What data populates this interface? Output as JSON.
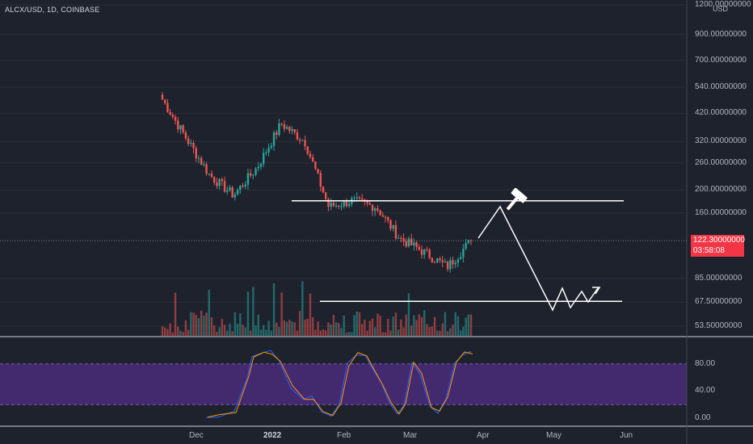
{
  "header": {
    "symbol": "ALCX/USD, 1D, COINBASE",
    "currency": "USD"
  },
  "price_scale": [
    {
      "label": "1200.00000000",
      "value": 1200
    },
    {
      "label": "900.00000000",
      "value": 900
    },
    {
      "label": "700.00000000",
      "value": 700
    },
    {
      "label": "540.00000000",
      "value": 540
    },
    {
      "label": "420.00000000",
      "value": 420
    },
    {
      "label": "320.00000000",
      "value": 320
    },
    {
      "label": "260.00000000",
      "value": 260
    },
    {
      "label": "200.00000000",
      "value": 200
    },
    {
      "label": "160.00000000",
      "value": 160
    },
    {
      "label": "85.00000000",
      "value": 85
    },
    {
      "label": "67.50000000",
      "value": 67.5
    },
    {
      "label": "53.50000000",
      "value": 53.5
    }
  ],
  "last_price": {
    "price": "122.30000000",
    "countdown": "03:58:08"
  },
  "rsi_scale": [
    {
      "label": "80.00",
      "value": 80
    },
    {
      "label": "40.00",
      "value": 40
    },
    {
      "label": "0.00",
      "value": 0
    }
  ],
  "time_axis": [
    {
      "label": "Dec",
      "bold": false
    },
    {
      "label": "2022",
      "bold": true
    },
    {
      "label": "Feb",
      "bold": false
    },
    {
      "label": "Mar",
      "bold": false
    },
    {
      "label": "Apr",
      "bold": false
    },
    {
      "label": "May",
      "bold": false
    },
    {
      "label": "Jun",
      "bold": false
    }
  ],
  "chart_data": {
    "type": "candlestick",
    "symbol": "ALCX/USD",
    "interval": "1D",
    "exchange": "COINBASE",
    "scale": "log",
    "up_color": "#26a69a",
    "down_color": "#ef5350",
    "last_price": 122.3,
    "candles_close_approx": [
      {
        "period": "mid Nov",
        "close": 480
      },
      {
        "period": "late Nov",
        "close": 330
      },
      {
        "period": "early Dec",
        "close": 230
      },
      {
        "period": "mid Dec",
        "close": 190
      },
      {
        "period": "late Dec",
        "close": 250
      },
      {
        "period": "early Jan",
        "close": 380
      },
      {
        "period": "mid Jan",
        "close": 320
      },
      {
        "period": "late Jan",
        "close": 170
      },
      {
        "period": "early Feb",
        "close": 180
      },
      {
        "period": "mid Feb",
        "close": 170
      },
      {
        "period": "late Feb",
        "close": 125
      },
      {
        "period": "early Mar",
        "close": 110
      },
      {
        "period": "mid Mar",
        "close": 95
      },
      {
        "period": "late Mar",
        "close": 122.3
      }
    ],
    "horizontal_levels": [
      180,
      68
    ],
    "projection": "rise to ~180 resistance in early Apr, drop to ~68 support in May, then sideways",
    "oscillator": {
      "band": [
        20,
        80
      ],
      "latest": 97
    },
    "colors": {
      "background": "#1e222d",
      "rsi_band": "#4a2b7a",
      "oscillator_line_1": "#2962ff",
      "oscillator_line_2": "#ff9800",
      "price_tag": "#f23645",
      "drawing": "#ffffff"
    }
  }
}
